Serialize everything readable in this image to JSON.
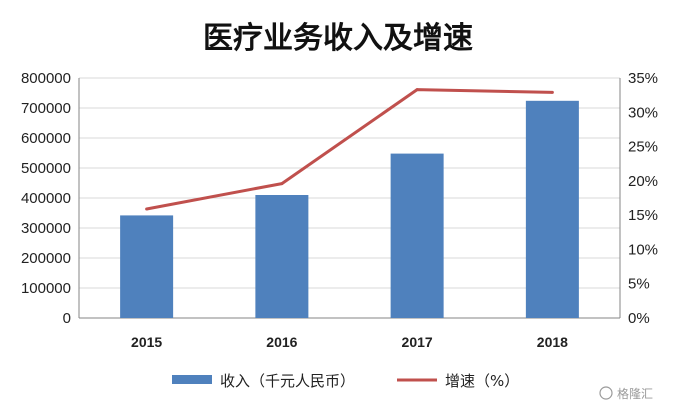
{
  "chart_data": {
    "type": "bar",
    "title": "医疗业务收入及增速",
    "categories": [
      "2015",
      "2016",
      "2017",
      "2018"
    ],
    "series": [
      {
        "name": "收入（千元人民币）",
        "type": "bar",
        "axis": "left",
        "color": "#4f81bd",
        "values": [
          342000,
          410000,
          548000,
          724000
        ]
      },
      {
        "name": "增速（%）",
        "type": "line",
        "axis": "right",
        "color": "#c0504d",
        "values": [
          15.9,
          19.6,
          33.3,
          32.9
        ]
      }
    ],
    "y_left": {
      "ylim": [
        0,
        800000
      ],
      "ticks": [
        "0",
        "100000",
        "200000",
        "300000",
        "400000",
        "500000",
        "600000",
        "700000",
        "800000"
      ]
    },
    "y_right": {
      "ylim": [
        0,
        35
      ],
      "ticks": [
        "0%",
        "5%",
        "10%",
        "15%",
        "20%",
        "25%",
        "30%",
        "35%"
      ]
    },
    "grid": true,
    "legend_position": "bottom"
  },
  "watermark": "格隆汇",
  "colors": {
    "bar": "#4f81bd",
    "line": "#c0504d",
    "grid": "#d9d9d9",
    "axis": "#868686"
  }
}
